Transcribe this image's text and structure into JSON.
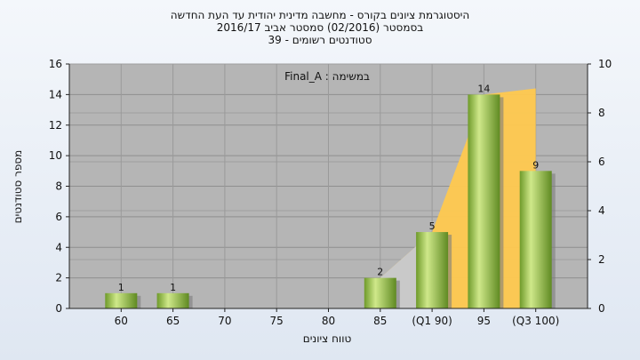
{
  "chart_data": {
    "type": "bar",
    "title": "היסטוגרמת ציונים בקורס - מחשבה מדינית יהודית עד העת החדשה",
    "subtitle": "בסמסטר  (02/2016)  סמסטר אביב 2016/17",
    "subtitle2": "סטודנטים רשומים - 39",
    "annotation": "במשימה : Final_A",
    "categories": [
      "60",
      "65",
      "70",
      "75",
      "80",
      "85",
      "(Q1 90)",
      "95",
      "(Q3 100)"
    ],
    "values": [
      1,
      1,
      0,
      0,
      0,
      2,
      5,
      14,
      9
    ],
    "data_labels": [
      "1",
      "1",
      "",
      "",
      "",
      "2",
      "5",
      "14",
      "9"
    ],
    "ylabel": "מספר סטודנטים",
    "xlabel": "טווח ציונים",
    "ylim": [
      0,
      16
    ],
    "yticks": [
      "0",
      "2",
      "4",
      "6",
      "8",
      "10",
      "12",
      "14",
      "16"
    ],
    "y2lim": [
      0,
      10
    ],
    "y2ticks": [
      "0",
      "2",
      "4",
      "6",
      "8",
      "10"
    ],
    "area_band": {
      "from_category_index": 5,
      "values": [
        2,
        5,
        14,
        14.4
      ]
    },
    "colors": {
      "plot_bg": "#b5b5b5",
      "bar_light": "#cfe88a",
      "bar_dark": "#6e9a2a",
      "area": "#ffc94f",
      "area_grey": "#c9c9c9"
    },
    "grid": true
  }
}
